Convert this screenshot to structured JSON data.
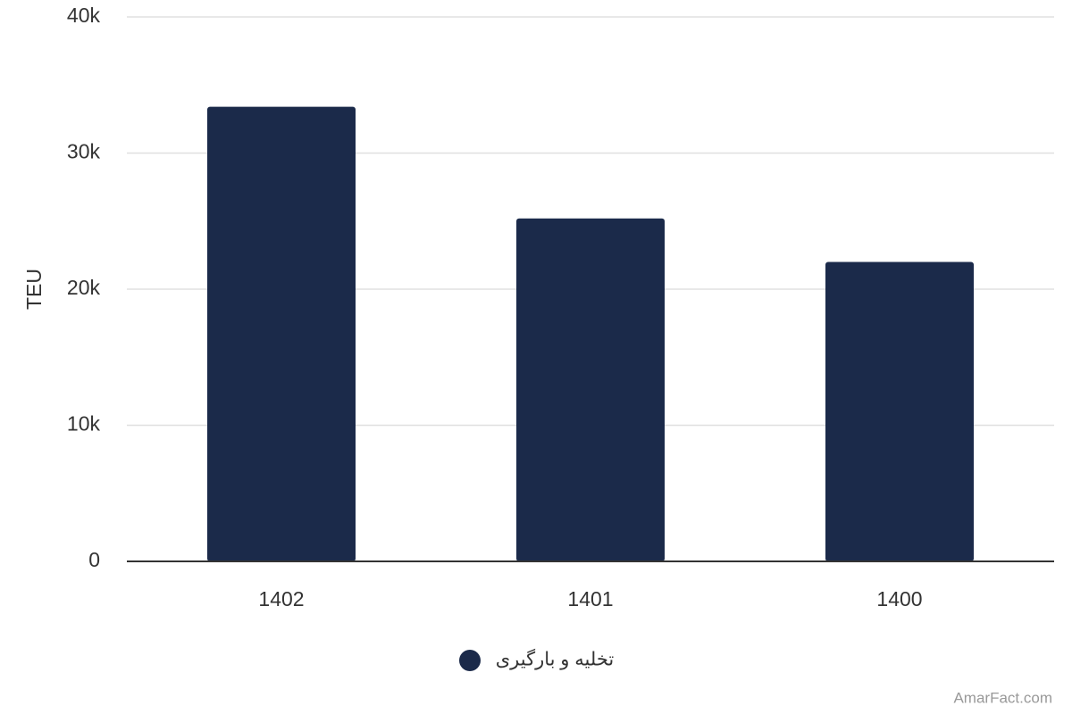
{
  "chart_data": {
    "type": "bar",
    "y_label": "TEU",
    "categories": [
      "1402",
      "1401",
      "1400"
    ],
    "series": [
      {
        "name": "تخلیه و بارگیری",
        "color": "#1b2a4a",
        "values": [
          33400,
          25200,
          22000
        ]
      }
    ],
    "ylim": [
      0,
      40000
    ],
    "yticks": [
      0,
      {
        "value": 10000,
        "label": "10k"
      },
      {
        "value": 20000,
        "label": "20k"
      },
      {
        "value": 30000,
        "label": "30k"
      },
      {
        "value": 40000,
        "label": "40k"
      }
    ],
    "grid": true,
    "legend": "bottom",
    "credit": "AmarFact.com"
  }
}
